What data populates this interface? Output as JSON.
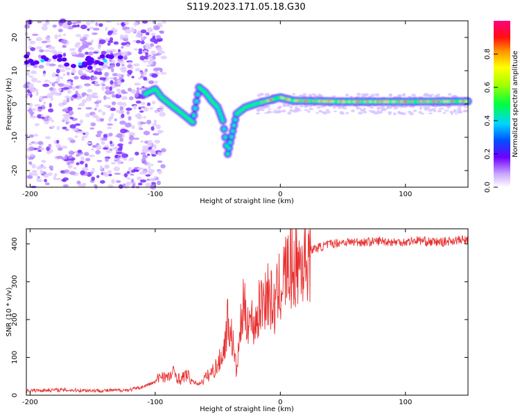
{
  "title": "S119.2023.171.05.18.G30",
  "chart_data": [
    {
      "type": "heatmap",
      "xlabel": "Height of straight line (km)",
      "ylabel": "Frequency (Hz)",
      "xlim": [
        -203,
        150
      ],
      "ylim": [
        -25,
        25
      ],
      "xticks": [
        -200,
        -100,
        0,
        100
      ],
      "yticks": [
        -20,
        -10,
        0,
        10,
        20
      ],
      "colorbar": {
        "label": "Normalized spectral amplitude",
        "range": [
          0,
          1
        ],
        "ticks": [
          0.0,
          0.2,
          0.4,
          0.6,
          0.8
        ]
      },
      "ridge": [
        {
          "x": -108,
          "y": 3
        },
        {
          "x": -100,
          "y": 4.5
        },
        {
          "x": -95,
          "y": 2
        },
        {
          "x": -85,
          "y": -1
        },
        {
          "x": -78,
          "y": -3
        },
        {
          "x": -70,
          "y": -5.5
        },
        {
          "x": -65,
          "y": 5
        },
        {
          "x": -60,
          "y": 3.5
        },
        {
          "x": -55,
          "y": 1
        },
        {
          "x": -50,
          "y": -1
        },
        {
          "x": -46,
          "y": -5
        },
        {
          "x": -42,
          "y": -15
        },
        {
          "x": -35,
          "y": -3
        },
        {
          "x": -28,
          "y": -1
        },
        {
          "x": -20,
          "y": 0
        },
        {
          "x": -10,
          "y": 1
        },
        {
          "x": 0,
          "y": 2
        },
        {
          "x": 10,
          "y": 1
        },
        {
          "x": 50,
          "y": 0.7
        },
        {
          "x": 100,
          "y": 0.7
        },
        {
          "x": 150,
          "y": 0.8
        }
      ],
      "noise_bands": [
        {
          "x": -190,
          "y": 13
        },
        {
          "x": -160,
          "y": 12
        },
        {
          "x": -140,
          "y": 13
        }
      ]
    },
    {
      "type": "line",
      "xlabel": "Height of straight line (km)",
      "ylabel": "SNR (10 * v/v)",
      "xlim": [
        -203,
        150
      ],
      "ylim": [
        0,
        440
      ],
      "xticks": [
        -200,
        -100,
        0,
        100
      ],
      "yticks": [
        0,
        100,
        200,
        300,
        400
      ],
      "color": "#e83030",
      "series": [
        {
          "x": [
            -203,
            -180,
            -160,
            -140,
            -120,
            -110,
            -100,
            -95,
            -90,
            -85,
            -80,
            -75,
            -70,
            -65,
            -60,
            -55,
            -50,
            -45,
            -42,
            -38,
            -35,
            -32,
            -30,
            -25,
            -20,
            -15,
            -10,
            -5,
            0,
            5,
            10,
            15,
            20,
            25,
            30,
            35,
            40,
            50,
            60,
            70,
            80,
            90,
            100,
            110,
            120,
            130,
            140,
            150
          ],
          "y": [
            12,
            14,
            13,
            12,
            14,
            22,
            35,
            55,
            45,
            60,
            40,
            55,
            35,
            30,
            45,
            60,
            80,
            120,
            200,
            140,
            60,
            170,
            230,
            200,
            190,
            250,
            270,
            230,
            290,
            330,
            340,
            350,
            360,
            385,
            390,
            395,
            400,
            405,
            405,
            405,
            408,
            405,
            405,
            410,
            405,
            405,
            410,
            410
          ]
        }
      ]
    }
  ]
}
